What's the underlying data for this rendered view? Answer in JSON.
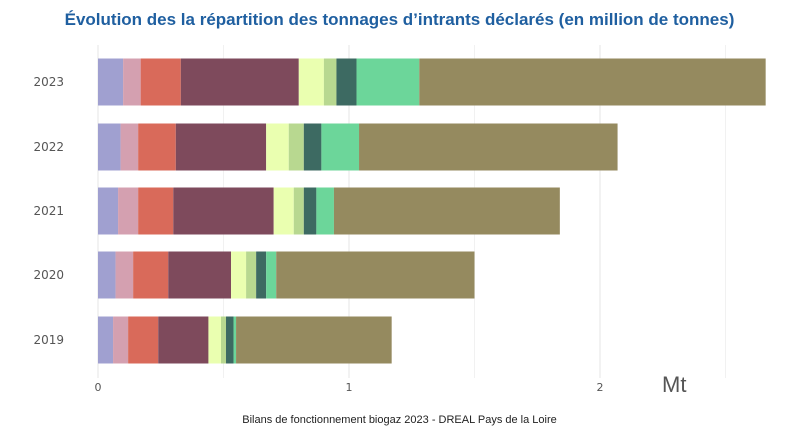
{
  "chart_data": {
    "type": "bar",
    "orientation": "horizontal",
    "stacked": true,
    "title": "Évolution des la répartition des tonnages d’intrants déclarés (en million de tonnes)",
    "unit_label": "Mt",
    "categories": [
      "2023",
      "2022",
      "2021",
      "2020",
      "2019"
    ],
    "xlim": [
      0,
      2.65
    ],
    "x_ticks": [
      "0",
      "1",
      "2"
    ],
    "x_tick_values": [
      0,
      1,
      2
    ],
    "grid": true,
    "series": [
      {
        "color": "#a0a0d0",
        "values": [
          0.1,
          0.09,
          0.08,
          0.07,
          0.06
        ]
      },
      {
        "color": "#d4a0b0",
        "values": [
          0.07,
          0.07,
          0.08,
          0.07,
          0.06
        ]
      },
      {
        "color": "#d96a5a",
        "values": [
          0.16,
          0.15,
          0.14,
          0.14,
          0.12
        ]
      },
      {
        "color": "#7e4a5c",
        "values": [
          0.47,
          0.36,
          0.4,
          0.25,
          0.2
        ]
      },
      {
        "color": "#eaffb0",
        "values": [
          0.1,
          0.09,
          0.08,
          0.06,
          0.05
        ]
      },
      {
        "color": "#b8d890",
        "values": [
          0.05,
          0.06,
          0.04,
          0.04,
          0.02
        ]
      },
      {
        "color": "#3d6a62",
        "values": [
          0.08,
          0.07,
          0.05,
          0.04,
          0.03
        ]
      },
      {
        "color": "#6cd69a",
        "values": [
          0.25,
          0.15,
          0.07,
          0.04,
          0.01
        ]
      },
      {
        "color": "#958a5f",
        "values": [
          1.38,
          1.03,
          0.9,
          0.79,
          0.62
        ]
      }
    ]
  },
  "source": "Bilans de fonctionnement biogaz 2023 - DREAL Pays de la Loire"
}
